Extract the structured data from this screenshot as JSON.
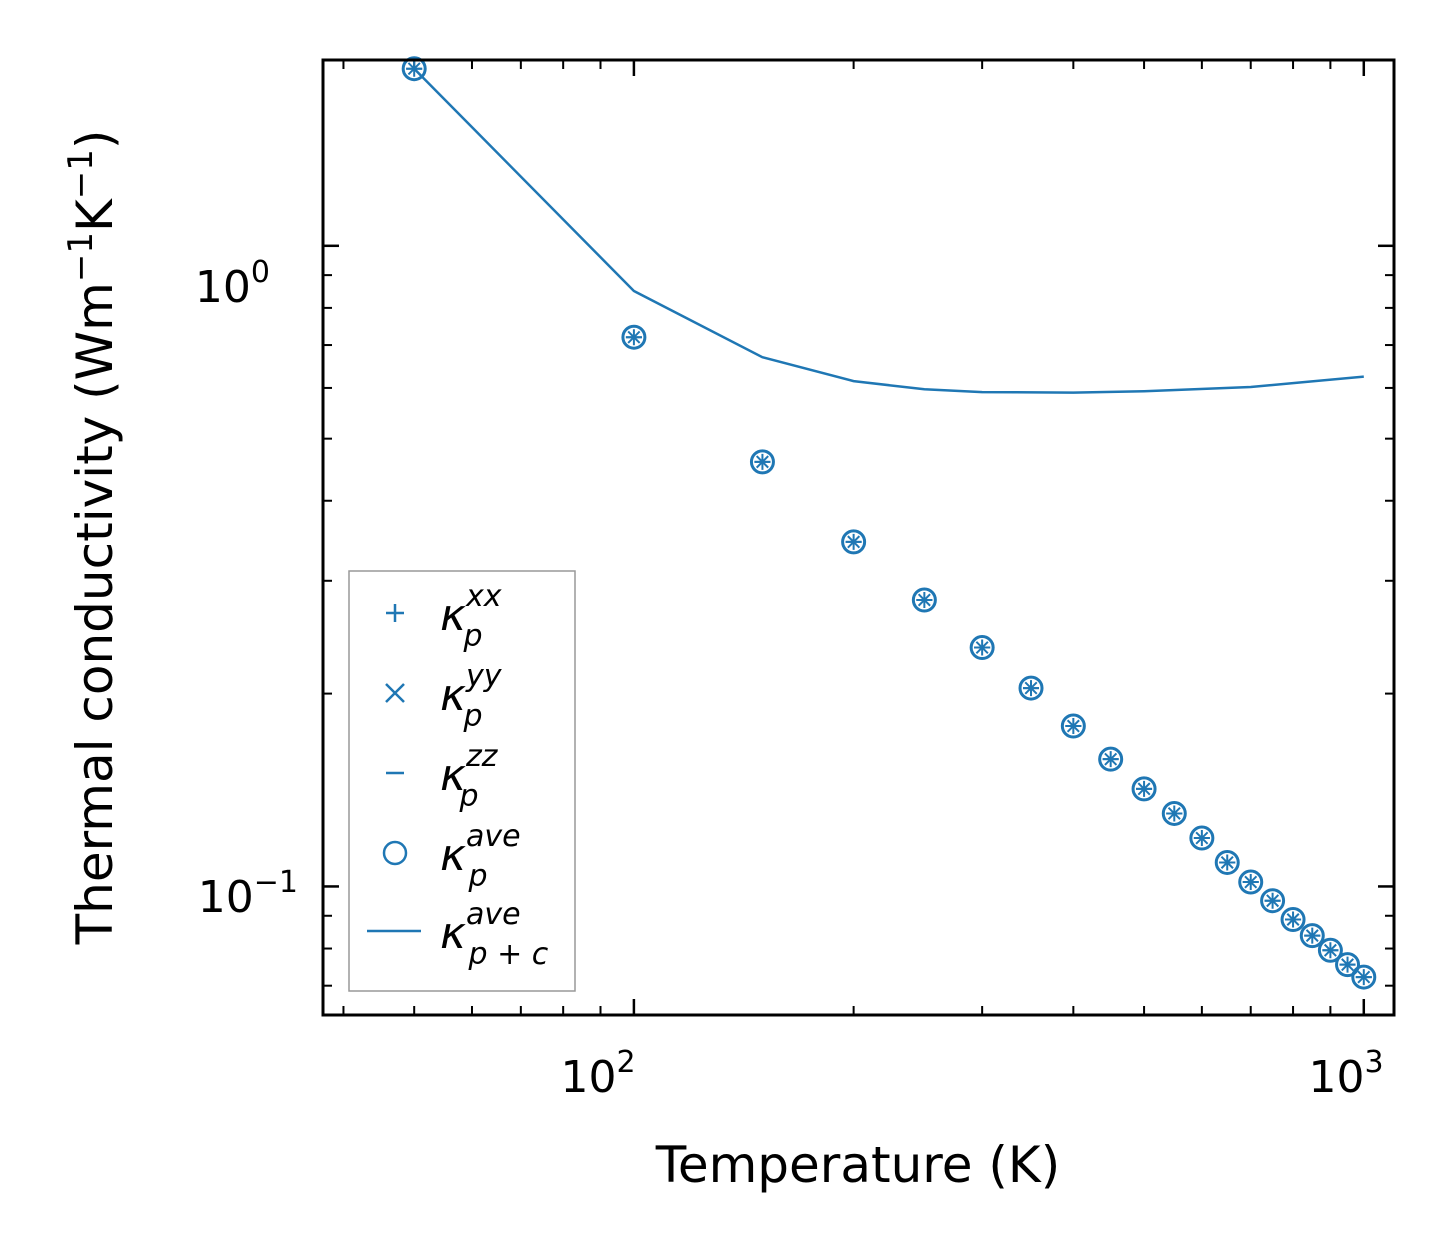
{
  "chart_data": {
    "type": "scatter",
    "title": "",
    "xlabel": "Temperature (K)",
    "ylabel_base": "Thermal conductivity (Wm",
    "ylabel_exp1": "−1",
    "ylabel_mid": "K",
    "ylabel_exp2": "−1",
    "ylabel_end": ")",
    "xscale": "log",
    "yscale": "log",
    "xlim": [
      37.5,
      1100
    ],
    "ylim": [
      0.063,
      1.95
    ],
    "x_ticks": [
      {
        "value": 100,
        "base": "10",
        "exp": "2"
      },
      {
        "value": 1000,
        "base": "10",
        "exp": "3"
      }
    ],
    "y_ticks": [
      {
        "value": 1.0,
        "base": "10",
        "exp": "0"
      },
      {
        "value": 0.1,
        "base": "10",
        "exp": "−1"
      }
    ],
    "legend_position": "lower-left",
    "color": "#1f77b4",
    "x": [
      50,
      100,
      150,
      200,
      250,
      300,
      350,
      400,
      450,
      500,
      550,
      600,
      650,
      700,
      750,
      800,
      850,
      900,
      950,
      1000
    ],
    "series": [
      {
        "name": "kappa_p^xx",
        "label_base": "κ",
        "label_sub": "p",
        "label_sup": "xx",
        "marker": "plus",
        "values": [
          1.89,
          0.72,
          0.46,
          0.345,
          0.28,
          0.236,
          0.204,
          0.178,
          0.158,
          0.142,
          0.13,
          0.119,
          0.109,
          0.1016,
          0.095,
          0.0888,
          0.0838,
          0.0795,
          0.0755,
          0.0722
        ]
      },
      {
        "name": "kappa_p^yy",
        "label_base": "κ",
        "label_sub": "p",
        "label_sup": "yy",
        "marker": "x",
        "values": [
          1.89,
          0.72,
          0.46,
          0.345,
          0.28,
          0.236,
          0.204,
          0.178,
          0.158,
          0.142,
          0.13,
          0.119,
          0.109,
          0.1016,
          0.095,
          0.0888,
          0.0838,
          0.0795,
          0.0755,
          0.0722
        ]
      },
      {
        "name": "kappa_p^zz",
        "label_base": "κ",
        "label_sub": "p",
        "label_sup": "zz",
        "marker": "hline",
        "values": [
          1.89,
          0.72,
          0.46,
          0.345,
          0.28,
          0.236,
          0.204,
          0.178,
          0.158,
          0.142,
          0.13,
          0.119,
          0.109,
          0.1016,
          0.095,
          0.0888,
          0.0838,
          0.0795,
          0.0755,
          0.0722
        ]
      },
      {
        "name": "kappa_p^ave",
        "label_base": "κ",
        "label_sub": "p",
        "label_sup": "ave",
        "marker": "circle",
        "values": [
          1.89,
          0.72,
          0.46,
          0.345,
          0.28,
          0.236,
          0.204,
          0.178,
          0.158,
          0.142,
          0.13,
          0.119,
          0.109,
          0.1016,
          0.095,
          0.0888,
          0.0838,
          0.0795,
          0.0755,
          0.0722
        ]
      },
      {
        "name": "kappa_p+c^ave",
        "label_base": "κ",
        "label_sub": "p + c",
        "label_sup": "ave",
        "marker": "line",
        "x": [
          50,
          100,
          150,
          200,
          250,
          300,
          400,
          500,
          700,
          1000
        ],
        "values": [
          1.89,
          0.85,
          0.67,
          0.615,
          0.597,
          0.591,
          0.59,
          0.593,
          0.602,
          0.625
        ]
      }
    ]
  }
}
